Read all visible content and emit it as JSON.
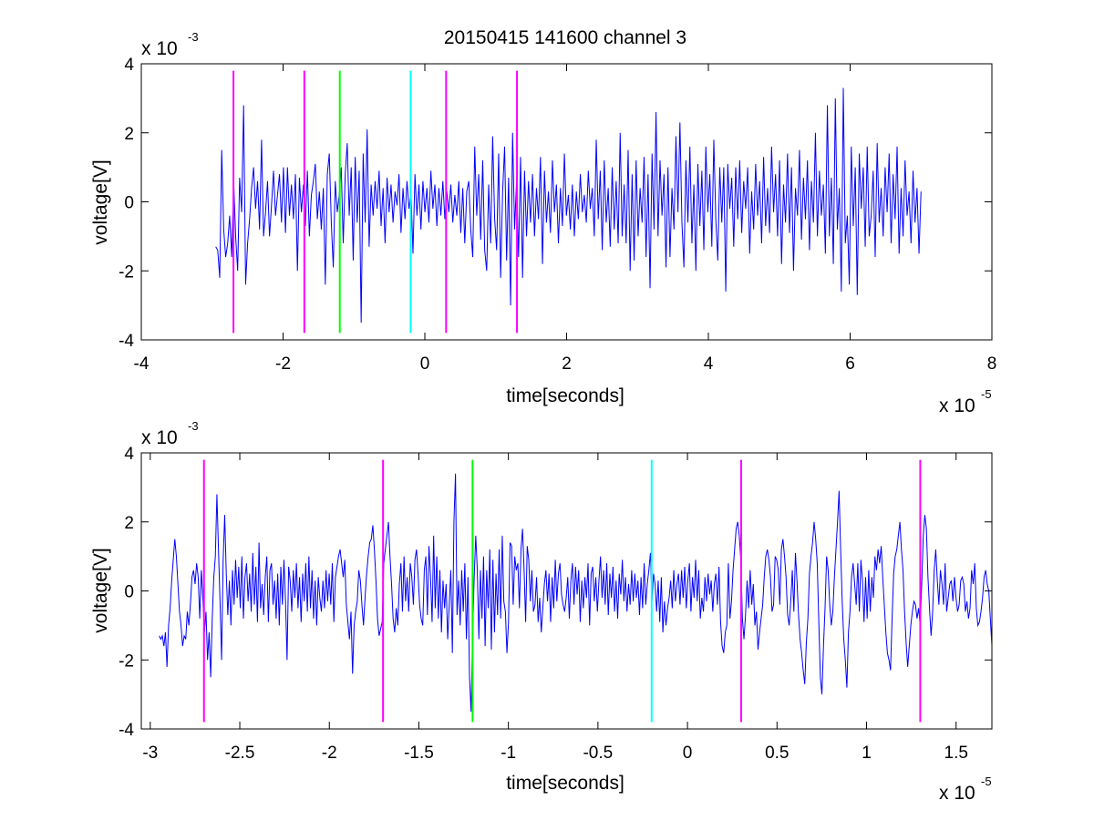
{
  "figure": {
    "title": "20150415 141600 channel 3",
    "background": "#ffffff"
  },
  "chart_data": [
    {
      "type": "line",
      "title": "20150415 141600 channel 3",
      "xlabel": "time[seconds]",
      "ylabel": "voltage[V]",
      "x_exponent": {
        "base": "x 10",
        "power": "-5"
      },
      "y_exponent": {
        "base": "x 10",
        "power": "-3"
      },
      "xlim": [
        -4,
        8
      ],
      "ylim": [
        -4,
        4
      ],
      "xticks": [
        "-4",
        "-2",
        "0",
        "2",
        "4",
        "6",
        "8"
      ],
      "yticks": [
        "-4",
        "-2",
        "0",
        "2",
        "4"
      ],
      "grid": false,
      "series": [
        {
          "color": "#0000ff",
          "x_start": -2.95,
          "x_end": 7.0,
          "y": [
            -1.3,
            -1.4,
            -2.2,
            1.5,
            -0.8,
            -1.6,
            -1.2,
            -0.4,
            -1.6,
            0.6,
            -1.0,
            -2.0,
            0.7,
            -0.3,
            2.8,
            -2.4,
            -1.2,
            -0.5,
            0.4,
            1.0,
            -0.2,
            0.6,
            -0.8,
            1.8,
            -1.0,
            -0.3,
            0.6,
            -1.0,
            -0.1,
            0.9,
            -0.4,
            0.2,
            0.8,
            -0.6,
            1.0,
            -0.9,
            1.0,
            -0.4,
            0.5,
            -0.5,
            0.8,
            -2.0,
            0.7,
            -0.3,
            0.5,
            -0.7,
            0.9,
            -1.0,
            0.2,
            0.6,
            1.1,
            -0.5,
            0.3,
            -0.8,
            0.4,
            -2.4,
            0.8,
            1.4,
            -0.6,
            -1.9,
            0.6,
            -0.3,
            0.2,
            1.0,
            -1.2,
            0.8,
            1.7,
            -0.4,
            1.0,
            -1.7,
            1.3,
            -0.6,
            0.9,
            -3.5,
            1.4,
            -0.6,
            2.1,
            -1.3,
            0.5,
            -0.4,
            0.6,
            -0.2,
            0.9,
            -0.7,
            0.4,
            -1.2,
            0.7,
            -0.3,
            0.5,
            -0.6,
            0.3,
            -0.1,
            0.8,
            -0.9,
            0.4,
            -0.5,
            0.6,
            -0.2,
            0.3,
            -1.5,
            0.8,
            -0.4,
            0.5,
            -0.8,
            0.6,
            -0.3,
            0.4,
            -0.6,
            0.9,
            -0.2,
            0.5,
            -0.7,
            0.4,
            -0.4,
            0.6,
            -0.5,
            0.3,
            -0.3,
            0.5,
            -0.6,
            0.2,
            -0.4,
            0.6,
            -0.9,
            0.4,
            -1.2,
            0.3,
            0.6,
            -0.8,
            -1.6,
            1.6,
            -0.4,
            0.8,
            -1.1,
            1.2,
            -1.4,
            -2.0,
            0.5,
            -1.2,
            1.9,
            -0.5,
            -1.4,
            1.4,
            -2.2,
            0.3,
            1.6,
            -1.7,
            0.7,
            -3.0,
            2.0,
            -0.8,
            0.6,
            -1.6,
            1.3,
            -2.2,
            0.9,
            -1.0,
            0.6,
            -0.6,
            0.8,
            -1.0,
            0.4,
            -0.5,
            1.3,
            -1.8,
            0.9,
            -0.6,
            0.3,
            -0.9,
            1.2,
            -0.3,
            0.5,
            -1.2,
            0.4,
            -0.7,
            1.4,
            -0.4,
            0.2,
            -0.8,
            0.5,
            -1.0,
            0.3,
            -0.5,
            0.8,
            -0.3,
            0.2,
            -0.6,
            0.9,
            -0.2,
            0.4,
            -1.0,
            1.8,
            -0.5,
            0.9,
            -1.4,
            1.2,
            -0.6,
            0.4,
            -1.3,
            1.0,
            -0.8,
            0.6,
            -1.2,
            2.0,
            -1.0,
            0.5,
            -1.2,
            1.5,
            -2.0,
            0.8,
            -1.7,
            1.2,
            -1.0,
            0.4,
            -0.6,
            1.3,
            -1.6,
            0.8,
            -2.5,
            1.4,
            -0.8,
            2.6,
            -1.0,
            1.2,
            -0.4,
            0.8,
            -1.9,
            1.0,
            -1.6,
            0.4,
            -0.8,
            1.9,
            -0.3,
            2.3,
            -0.6,
            -1.9,
            1.2,
            -0.6,
            1.6,
            -1.2,
            0.5,
            -2.0,
            1.1,
            -0.7,
            0.9,
            -1.4,
            1.6,
            -0.3,
            0.8,
            -1.3,
            1.8,
            -0.5,
            -1.7,
            1.0,
            -0.6,
            1.0,
            -2.6,
            1.1,
            -0.2,
            0.7,
            -1.3,
            1.0,
            -0.5,
            1.2,
            -0.9,
            0.6,
            -0.2,
            1.0,
            -1.5,
            0.3,
            -0.8,
            1.1,
            -0.4,
            0.6,
            -1.2,
            1.3,
            -0.7,
            0.4,
            -0.9,
            1.6,
            -0.3,
            0.8,
            -1.0,
            1.2,
            -1.8,
            0.5,
            -0.6,
            1.4,
            -0.9,
            1.0,
            -2.0,
            0.4,
            -0.4,
            1.5,
            -1.1,
            0.7,
            -0.5,
            1.2,
            -1.4,
            0.6,
            -0.6,
            2.0,
            -1.0,
            0.9,
            -0.4,
            0.5,
            -1.5,
            2.8,
            -1.0,
            0.7,
            -1.8,
            3.0,
            -0.8,
            0.4,
            -2.6,
            3.3,
            -1.2,
            -0.4,
            -2.4,
            1.6,
            -0.7,
            1.0,
            -2.7,
            1.4,
            -0.2,
            1.0,
            -1.3,
            1.6,
            -1.0,
            -0.4,
            0.9,
            -1.6,
            1.7,
            -0.6,
            0.4,
            -1.0,
            1.0,
            -0.3,
            1.4,
            -1.2,
            0.8,
            -0.5,
            1.6,
            -1.5,
            0.4,
            -1.0,
            1.2,
            -0.4,
            0.3,
            -1.2,
            0.9,
            -0.6,
            0.4,
            -1.5,
            0.3
          ]
        }
      ],
      "vlines": [
        {
          "x": -2.7,
          "color": "#ff00ff"
        },
        {
          "x": -1.7,
          "color": "#ff00ff"
        },
        {
          "x": -1.2,
          "color": "#00ff00"
        },
        {
          "x": -0.2,
          "color": "#00ffff"
        },
        {
          "x": 0.3,
          "color": "#ff00ff"
        },
        {
          "x": 1.3,
          "color": "#ff00ff"
        }
      ]
    },
    {
      "type": "line",
      "title": "",
      "xlabel": "time[seconds]",
      "ylabel": "voltage[V]",
      "x_exponent": {
        "base": "x 10",
        "power": "-5"
      },
      "y_exponent": {
        "base": "x 10",
        "power": "-3"
      },
      "xlim": [
        -3.05,
        1.7
      ],
      "ylim": [
        -4,
        4
      ],
      "xticks_values": [
        -3,
        -2.5,
        -2,
        -1.5,
        -1,
        -0.5,
        0,
        0.5,
        1,
        1.5
      ],
      "xticks": [
        "-3",
        "-2.5",
        "-2",
        "-1.5",
        "-1",
        "-0.5",
        "0",
        "0.5",
        "1",
        "1.5"
      ],
      "yticks": [
        "-4",
        "-2",
        "0",
        "2",
        "4"
      ],
      "grid": false,
      "series": [
        {
          "color": "#0000ff",
          "x_start": -2.95,
          "x_end": 1.7,
          "y": [
            -1.3,
            -1.4,
            -1.3,
            -1.6,
            -1.2,
            -2.2,
            -1.0,
            -0.5,
            0.3,
            0.9,
            1.5,
            1.0,
            0.2,
            -0.6,
            -1.0,
            -1.6,
            -1.3,
            -1.4,
            -0.6,
            -1.0,
            -0.4,
            0.4,
            0.6,
            0.2,
            0.8,
            0.4,
            -0.8,
            0.6,
            -0.2,
            -1.2,
            -0.6,
            -2.0,
            -1.2,
            -2.5,
            -0.8,
            0.4,
            1.0,
            2.8,
            1.2,
            -0.3,
            -2.0,
            0.9,
            2.2,
            0.5,
            -0.7,
            0.3,
            -1.0,
            0.6,
            -0.4,
            0.9,
            -0.2,
            0.7,
            -0.5,
            1.0,
            -0.8,
            0.4,
            0.8,
            -0.3,
            0.5,
            -0.6,
            1.1,
            -0.4,
            0.7,
            -0.9,
            1.4,
            -0.5,
            0.2,
            -0.7,
            0.4,
            1.0,
            -0.9,
            0.6,
            0.8,
            -0.4,
            0.3,
            -0.8,
            0.5,
            -1.0,
            0.7,
            -0.4,
            0.9,
            -0.3,
            -2.0,
            0.7,
            0.3,
            -0.6,
            0.6,
            -0.2,
            0.8,
            -0.5,
            0.4,
            -0.9,
            0.5,
            -0.3,
            0.8,
            -0.6,
            1.0,
            -0.5,
            0.6,
            -0.8,
            0.3,
            -1.0,
            0.4,
            -0.2,
            -0.6,
            0.3,
            -0.5,
            0.6,
            -0.3,
            0.5,
            -0.4,
            0.8,
            -0.9,
            0.4,
            0.7,
            1.0,
            1.2,
            0.8,
            0.4,
            0.9,
            -0.4,
            -0.9,
            -1.4,
            -0.6,
            -2.4,
            -1.0,
            -0.6,
            -0.3,
            0.6,
            0.3,
            -0.4,
            -1.0,
            -0.2,
            0.5,
            1.0,
            1.4,
            1.5,
            1.9,
            1.2,
            0.3,
            -0.8,
            -1.3,
            -1.1,
            -0.9,
            0.8,
            1.2,
            1.6,
            2.0,
            1.0,
            0.2,
            -0.8,
            -1.2,
            -0.5,
            -1.0,
            0.2,
            0.8,
            -0.6,
            1.0,
            -0.3,
            0.4,
            -0.6,
            0.8,
            0.4,
            -0.4,
            0.9,
            1.2,
            0.5,
            -0.4,
            -0.8,
            -1.0,
            0.6,
            1.0,
            -0.7,
            1.3,
            0.4,
            -0.9,
            1.6,
            -0.5,
            1.0,
            -0.8,
            0.6,
            -1.2,
            0.3,
            -0.5,
            0.2,
            -1.4,
            -0.4,
            0.6,
            -1.8,
            2.0,
            3.4,
            -0.7,
            0.3,
            -1.0,
            0.6,
            -0.6,
            0.8,
            -1.4,
            0.4,
            -2.5,
            -3.5,
            -1.2,
            0.4,
            1.6,
            0.6,
            -1.4,
            0.6,
            -0.8,
            1.0,
            -1.6,
            0.6,
            -0.5,
            1.2,
            -1.7,
            0.9,
            -1.2,
            0.5,
            -0.7,
            1.2,
            -0.8,
            1.6,
            -0.3,
            -0.6,
            -1.8,
            -0.9,
            1.4,
            1.3,
            -0.4,
            1.0,
            0.6,
            0.8,
            -0.5,
            1.2,
            1.8,
            0.6,
            -0.9,
            1.3,
            0.9,
            -0.3,
            0.6,
            -0.6,
            -0.4,
            0.4,
            -0.9,
            -0.2,
            -1.2,
            -0.5,
            0.2,
            0.6,
            -0.3,
            0.5,
            -0.9,
            0.4,
            -0.5,
            0.9,
            -0.3,
            0.5,
            0.8,
            -0.1,
            -0.4,
            -0.6,
            -0.2,
            0.4,
            -0.8,
            0.3,
            0.8,
            -0.4,
            0.7,
            -0.1,
            0.6,
            -0.9,
            0.3,
            -0.5,
            0.4,
            -0.2,
            0.8,
            -1.0,
            0.5,
            0.7,
            -0.3,
            0.4,
            -0.6,
            0.3,
            1.0,
            -0.2,
            0.6,
            -0.4,
            0.8,
            -0.7,
            0.5,
            -0.2,
            0.7,
            -0.6,
            0.3,
            -0.8,
            0.5,
            -0.1,
            0.9,
            -0.3,
            0.4,
            -0.6,
            0.2,
            -0.4,
            0.6,
            -0.3,
            0.5,
            -0.2,
            0.3,
            -0.7,
            0.4,
            -0.5,
            0.8,
            -0.4,
            0.2,
            0.6,
            1.1,
            -0.3,
            0.5,
            0.2,
            -0.6,
            0.3,
            -0.9,
            0.4,
            -1.2,
            -0.3,
            -1.0,
            -0.5,
            -0.2,
            0.3,
            -0.5,
            0.6,
            -0.3,
            0.2,
            0.5,
            -0.4,
            0.6,
            -0.2,
            0.7,
            -0.5,
            0.3,
            0.8,
            -0.6,
            0.4,
            -0.2,
            0.9,
            -0.3,
            0.6,
            -0.8,
            -0.2,
            -0.6,
            0.4,
            -0.3,
            0.5,
            -0.1,
            0.3,
            -0.6,
            0.2,
            0.5,
            -0.4,
            0.7,
            -0.9,
            -1.6,
            -1.8,
            -1.2,
            -1.0,
            0.8,
            -0.8,
            -0.3,
            0.6,
            1.2,
            1.8,
            2.0,
            1.6,
            0.9,
            -0.8,
            -1.4,
            -0.7,
            0.3,
            -0.5,
            0.6,
            -0.4,
            0.2,
            -1.0,
            -0.6,
            -1.7,
            -1.2,
            -0.8,
            -0.4,
            0.4,
            1.0,
            1.2,
            0.9,
            0.4,
            -0.6,
            -0.4,
            1.0,
            0.9,
            0.6,
            -0.4,
            1.2,
            1.5,
            1.0,
            0.4,
            -0.7,
            -1.0,
            -0.3,
            0.6,
            -0.6,
            1.1,
            0.3,
            -0.7,
            -1.4,
            -1.8,
            -2.3,
            -2.7,
            -1.5,
            -0.8,
            0.5,
            1.0,
            1.4,
            2.0,
            1.5,
            0.8,
            -0.9,
            -2.5,
            -3.0,
            -1.6,
            -0.5,
            1.0,
            0.6,
            -0.4,
            -1.0,
            -0.6,
            0.4,
            1.2,
            2.0,
            2.9,
            1.2,
            -0.3,
            -1.4,
            -2.0,
            -2.8,
            -1.2,
            -0.6,
            0.4,
            0.8,
            0.2,
            -0.4,
            0.8,
            -0.6,
            0.9,
            0.3,
            -0.9,
            0.4,
            -0.8,
            0.6,
            -0.6,
            0.4,
            -0.2,
            1.0,
            0.6,
            1.2,
            0.8,
            1.3,
            0.4,
            -0.4,
            -1.2,
            -1.8,
            -2.0,
            -2.3,
            -0.8,
            0.5,
            1.0,
            1.2,
            1.6,
            2.0,
            1.2,
            0.6,
            -0.6,
            -1.5,
            -2.2,
            -1.6,
            -1.0,
            -0.6,
            -0.3,
            -0.4,
            -0.8,
            -0.5,
            -1.0,
            0.2,
            1.6,
            2.2,
            1.8,
            0.4,
            -0.5,
            -1.3,
            -0.6,
            0.6,
            1.2,
            0.3,
            -0.4,
            0.6,
            0.2,
            -0.4,
            0.8,
            -0.6,
            -0.2,
            0.2,
            0.3,
            -0.3,
            0.4,
            -0.2,
            -0.6,
            -0.4,
            0.3,
            0.4,
            0.2,
            -0.6,
            -0.3,
            -0.8,
            -0.5,
            0.6,
            0.2,
            0.8,
            -0.5,
            -1.0,
            -0.9,
            -0.6,
            -0.2,
            0.4,
            0.6,
            0.2,
            0.0,
            -0.8,
            -1.6
          ]
        }
      ],
      "vlines": [
        {
          "x": -2.7,
          "color": "#ff00ff"
        },
        {
          "x": -1.7,
          "color": "#ff00ff"
        },
        {
          "x": -1.2,
          "color": "#00ff00"
        },
        {
          "x": -0.2,
          "color": "#00ffff"
        },
        {
          "x": 0.3,
          "color": "#ff00ff"
        },
        {
          "x": 1.3,
          "color": "#ff00ff"
        }
      ]
    }
  ]
}
